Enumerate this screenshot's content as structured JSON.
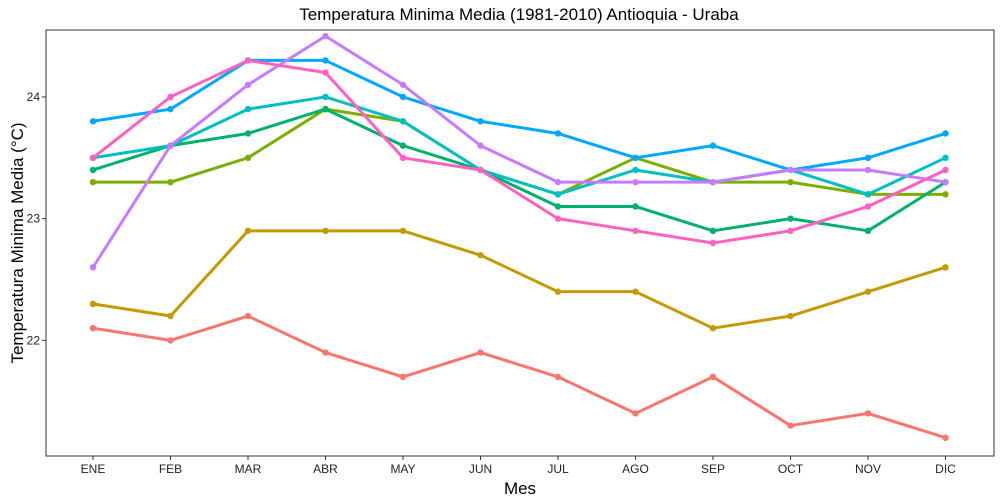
{
  "chart_data": {
    "type": "line",
    "title": "Temperatura Minima Media (1981-2010)  Antioquia - Uraba",
    "xlabel": "Mes",
    "ylabel": "Temperatura Minima Media  (°C)",
    "categories": [
      "ENE",
      "FEB",
      "MAR",
      "ABR",
      "MAY",
      "JUN",
      "JUL",
      "AGO",
      "SEP",
      "OCT",
      "NOV",
      "DIC"
    ],
    "ylim": [
      21.05,
      24.55
    ],
    "yticks": [
      22,
      23,
      24
    ],
    "grid": false,
    "series": [
      {
        "color": "#F8766D",
        "values": [
          22.1,
          22.0,
          22.2,
          21.9,
          21.7,
          21.9,
          21.7,
          21.4,
          21.7,
          21.3,
          21.4,
          21.2
        ]
      },
      {
        "color": "#C49A00",
        "values": [
          22.3,
          22.2,
          22.9,
          22.9,
          22.9,
          22.7,
          22.4,
          22.4,
          22.1,
          22.2,
          22.4,
          22.6
        ]
      },
      {
        "color": "#7CAE00",
        "values": [
          23.3,
          23.3,
          23.5,
          23.9,
          23.8,
          23.4,
          23.2,
          23.5,
          23.3,
          23.3,
          23.2,
          23.2
        ]
      },
      {
        "color": "#00B06B",
        "values": [
          23.4,
          23.6,
          23.7,
          23.9,
          23.6,
          23.4,
          23.1,
          23.1,
          22.9,
          23.0,
          22.9,
          23.3
        ]
      },
      {
        "color": "#00BFC4",
        "values": [
          23.5,
          23.6,
          23.9,
          24.0,
          23.8,
          23.4,
          23.2,
          23.4,
          23.3,
          23.4,
          23.2,
          23.5
        ]
      },
      {
        "color": "#00A9FF",
        "values": [
          23.8,
          23.9,
          24.3,
          24.3,
          24.0,
          23.8,
          23.7,
          23.5,
          23.6,
          23.4,
          23.5,
          23.7
        ]
      },
      {
        "color": "#C77CFF",
        "values": [
          22.6,
          23.6,
          24.1,
          24.5,
          24.1,
          23.6,
          23.3,
          23.3,
          23.3,
          23.4,
          23.4,
          23.3
        ]
      },
      {
        "color": "#FF61C3",
        "values": [
          23.5,
          24.0,
          24.3,
          24.2,
          23.5,
          23.4,
          23.0,
          22.9,
          22.8,
          22.9,
          23.1,
          23.4
        ]
      }
    ]
  }
}
